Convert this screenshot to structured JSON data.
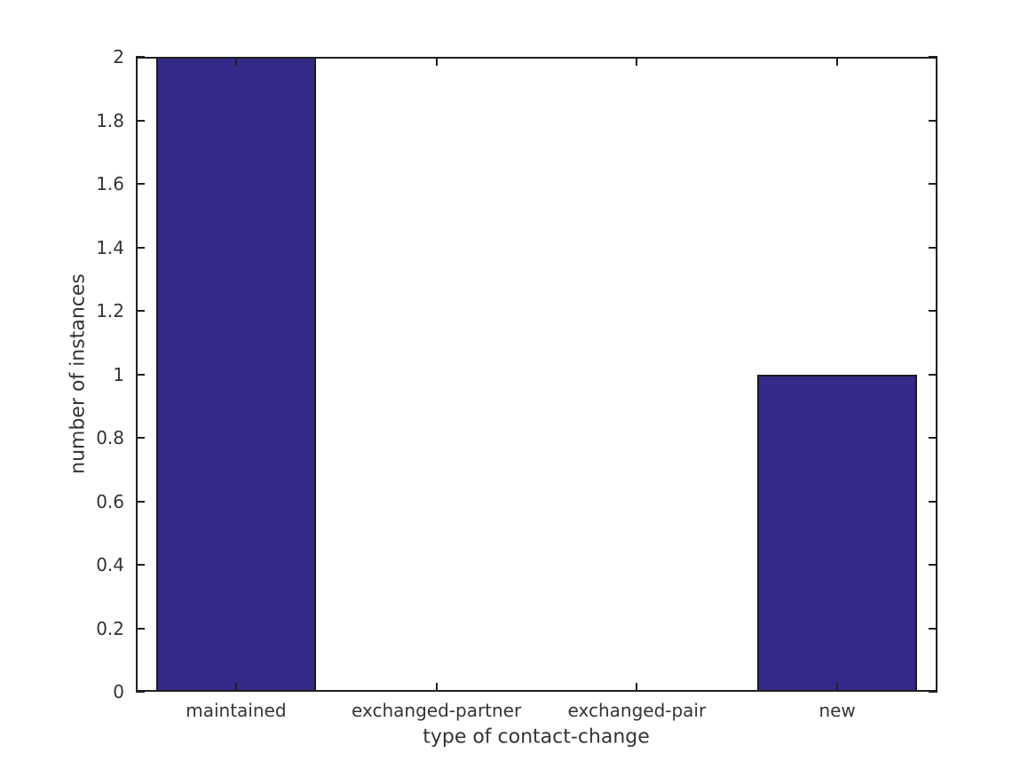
{
  "chart_data": {
    "type": "bar",
    "title": "",
    "categories": [
      "maintained",
      "exchanged-partner",
      "exchanged-pair",
      "new"
    ],
    "values": [
      2,
      0,
      0,
      1
    ],
    "xlabel": "type of contact-change",
    "ylabel": "number of instances",
    "ylim": [
      0,
      2
    ],
    "ytick_step": 0.2,
    "ytick_labels": [
      "0",
      "0.2",
      "0.4",
      "0.6",
      "0.8",
      "1",
      "1.2",
      "1.4",
      "1.6",
      "1.8",
      "2"
    ],
    "bar_width_frac": 0.8,
    "bar_color": "#332a87",
    "bar_edge_color": "#1a1a1a",
    "axis_color": "#1f1f1f",
    "text_color": "#343434",
    "background_color": "#ffffff",
    "grid": false,
    "legend": "none",
    "box": true,
    "tick_direction": "in"
  }
}
